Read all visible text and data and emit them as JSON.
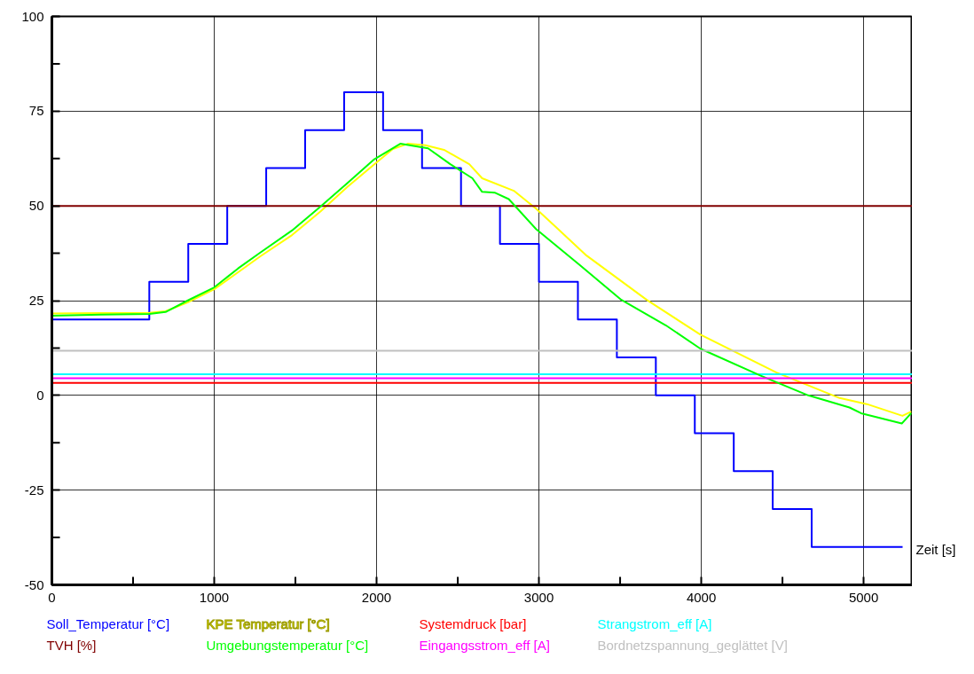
{
  "chart_data": {
    "type": "line",
    "xlabel": "Zeit [s]",
    "xlim": [
      0,
      5300
    ],
    "ylim": [
      -50,
      100
    ],
    "xticks": [
      0,
      {
        "value": 500,
        "label": null
      },
      1000,
      {
        "value": 1500,
        "label": null
      },
      2000,
      {
        "value": 2500,
        "label": null
      },
      3000,
      {
        "value": 3500,
        "label": null
      },
      4000,
      {
        "value": 4500,
        "label": null
      },
      5000
    ],
    "yticks": [
      -50,
      {
        "value": -37.5,
        "label": null
      },
      -25,
      {
        "value": -12.5,
        "label": null
      },
      0,
      {
        "value": 12.5,
        "label": null
      },
      25,
      {
        "value": 37.5,
        "label": null
      },
      50,
      {
        "value": 62.5,
        "label": null
      },
      75,
      {
        "value": 87.5,
        "label": null
      },
      100
    ],
    "grid": true,
    "marker": "none",
    "line_style": "solid",
    "series": [
      {
        "name": "Soll_Temperatur [°C]",
        "color": "#0000ff",
        "type": "step",
        "x": [
          0,
          600,
          840,
          1080,
          1320,
          1560,
          1800,
          2040,
          2280,
          2520,
          2760,
          3000,
          3240,
          3480,
          3720,
          3960,
          4200,
          4440,
          4680,
          5240
        ],
        "values": [
          20,
          30,
          40,
          50,
          60,
          70,
          80,
          70,
          60,
          50,
          40,
          30,
          20,
          10,
          0,
          -10,
          -20,
          -30,
          -40,
          -40
        ]
      },
      {
        "name": "KPE Temperatur [°C]",
        "color": "#ffff00",
        "x": [
          0,
          300,
          600,
          700,
          835,
          1000,
          1147,
          1284,
          1479,
          1654,
          1820,
          1986,
          2100,
          2191,
          2300,
          2415,
          2571,
          2650,
          2845,
          2982,
          3293,
          3664,
          3995,
          4464,
          4852,
          5020,
          5239,
          5293
        ],
        "values": [
          21.6,
          21.7,
          21.8,
          22.2,
          24.5,
          28,
          32.5,
          36.7,
          42.3,
          48.5,
          55,
          61,
          65,
          66.4,
          66,
          64.8,
          61,
          57.3,
          54,
          49.3,
          36.9,
          25.2,
          16,
          6,
          -0.7,
          -2.3,
          -5.4,
          -4.3
        ]
      },
      {
        "name": "Systemdruck [bar]",
        "color": "#ff0000",
        "x": [
          0,
          5300
        ],
        "values": [
          3.3,
          3.3
        ]
      },
      {
        "name": "Strangstrom_eff [A]",
        "color": "#00ffff",
        "x": [
          0,
          5300
        ],
        "values": [
          5.6,
          5.6
        ]
      },
      {
        "name": "TVH [%]",
        "color": "#800000",
        "x": [
          0,
          5300
        ],
        "values": [
          50,
          50
        ]
      },
      {
        "name": "Umgebungstemperatur [°C]",
        "color": "#00ff00",
        "x": [
          0,
          300,
          600,
          700,
          835,
          1000,
          1147,
          1284,
          1479,
          1654,
          1820,
          1986,
          2146,
          2317,
          2454,
          2590,
          2650,
          2727,
          2814,
          2982,
          3254,
          3508,
          3781,
          3995,
          4366,
          4659,
          4913,
          4984,
          5235,
          5293
        ],
        "values": [
          21,
          21.3,
          21.5,
          22,
          25,
          28.5,
          33.5,
          37.7,
          43.5,
          49.8,
          56,
          62.3,
          66.4,
          65.2,
          61,
          57.3,
          53.7,
          53.5,
          51.8,
          43.9,
          34.3,
          25.2,
          18.5,
          12.3,
          5.2,
          0,
          -3.2,
          -4.7,
          -7.4,
          -4.7
        ]
      },
      {
        "name": "Eingangsstrom_eff [A]",
        "color": "#ff00ff",
        "x": [
          0,
          5300
        ],
        "values": [
          4.5,
          4.5
        ]
      },
      {
        "name": "Bordnetzspannung_geglättet [V]",
        "color": "#c0c0c0",
        "x": [
          0,
          5300
        ],
        "values": [
          11.8,
          11.8
        ]
      }
    ]
  }
}
